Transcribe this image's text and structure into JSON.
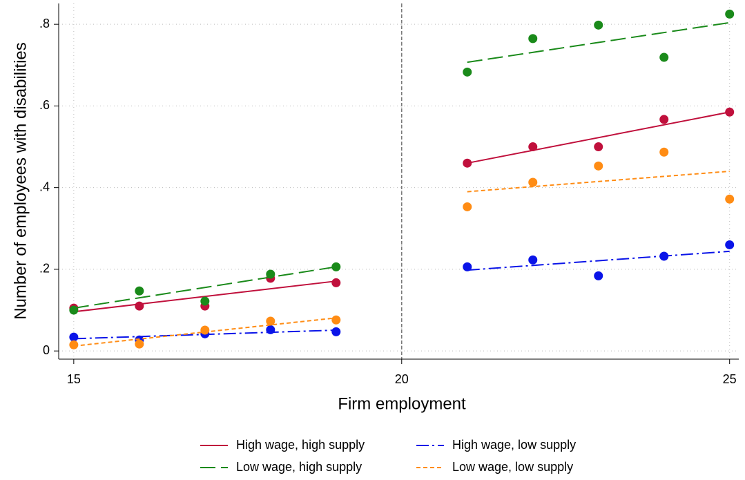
{
  "chart_data": {
    "type": "scatter",
    "x_label": "Firm employment",
    "y_label": "Number of employees with disabilities",
    "xlim": [
      14.77,
      25.14
    ],
    "ylim": [
      -0.02,
      0.851
    ],
    "xticks": [
      15,
      20,
      25
    ],
    "yticks": [
      0,
      {
        "value": 0.2,
        "label": ".2"
      },
      {
        "value": 0.4,
        "label": ".4"
      },
      {
        "value": 0.6,
        "label": ".6"
      },
      {
        "value": 0.8,
        "label": ".8"
      }
    ],
    "grid": true,
    "cutoff": 20,
    "x": [
      15,
      16,
      17,
      18,
      19,
      21,
      22,
      23,
      24,
      25
    ],
    "fit_x": [
      15,
      19,
      20,
      21,
      25
    ],
    "series": [
      {
        "name": "High wage, high supply",
        "color": "#c0103c",
        "dash": "solid",
        "values": [
          0.105,
          0.11,
          0.11,
          0.178,
          0.167,
          0.46,
          0.5,
          0.5,
          0.567,
          0.585
        ],
        "fit": [
          0.096,
          0.171,
          null,
          0.46,
          0.585
        ]
      },
      {
        "name": " High wage, low supply",
        "color": "#0a14e8",
        "dash": "dashdot",
        "values": [
          0.034,
          0.027,
          0.042,
          0.052,
          0.047,
          0.206,
          0.223,
          0.184,
          0.232,
          0.26
        ],
        "fit": [
          0.03,
          0.051,
          null,
          0.198,
          0.244
        ]
      },
      {
        "name": "Low wage, high supply",
        "color": "#1a8a1a",
        "dash": "longdash",
        "values": [
          0.1,
          0.147,
          0.122,
          0.188,
          0.206,
          0.683,
          0.765,
          0.798,
          0.719,
          0.825
        ],
        "fit": [
          0.105,
          0.206,
          null,
          0.707,
          0.804
        ]
      },
      {
        "name": "Low wage, low supply",
        "color": "#ff8c14",
        "dash": "shortdash",
        "values": [
          0.015,
          0.017,
          0.051,
          0.073,
          0.076,
          0.353,
          0.413,
          0.453,
          0.487,
          0.372
        ],
        "fit": [
          0.012,
          0.081,
          null,
          0.39,
          0.44
        ]
      }
    ]
  }
}
